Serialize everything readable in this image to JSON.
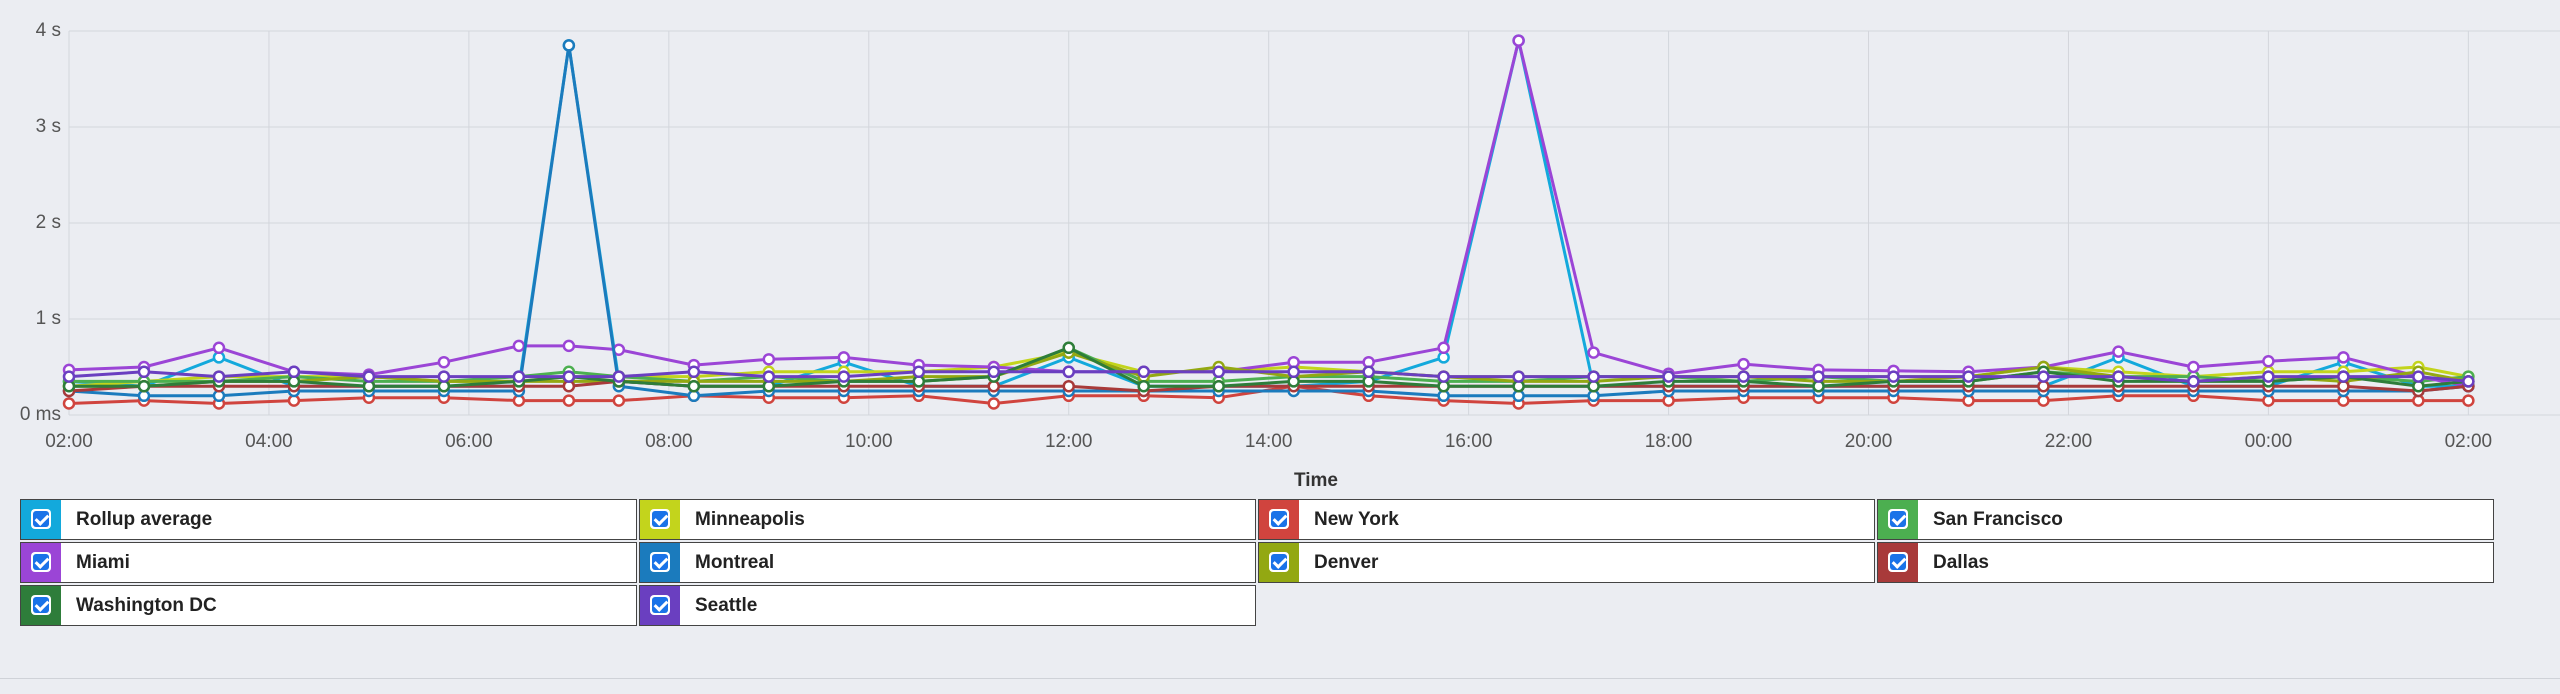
{
  "chart_data": {
    "type": "line",
    "x_label": "Time",
    "x": [
      "02:00",
      "02:45",
      "03:30",
      "04:15",
      "05:00",
      "05:45",
      "06:30",
      "07:00",
      "07:30",
      "08:15",
      "09:00",
      "09:45",
      "10:30",
      "11:15",
      "12:00",
      "12:45",
      "13:30",
      "14:15",
      "15:00",
      "15:45",
      "16:30",
      "17:15",
      "18:00",
      "18:45",
      "19:30",
      "20:15",
      "21:00",
      "21:45",
      "22:30",
      "23:15",
      "00:00",
      "00:45",
      "01:30",
      "02:00"
    ],
    "xlim": [
      "02:00",
      "02:55"
    ],
    "xticks": [
      "02:00",
      "04:00",
      "06:00",
      "08:00",
      "10:00",
      "12:00",
      "14:00",
      "16:00",
      "18:00",
      "20:00",
      "22:00",
      "00:00",
      "02:00"
    ],
    "ylim": [
      0,
      4
    ],
    "yticks": [
      {
        "value": 0,
        "label": "0 ms"
      },
      {
        "value": 1,
        "label": "1 s"
      },
      {
        "value": 2,
        "label": "2 s"
      },
      {
        "value": 3,
        "label": "3 s"
      },
      {
        "value": 4,
        "label": "4 s"
      }
    ],
    "grid": true,
    "series": [
      {
        "name": "Rollup average",
        "color": "#13a9dc",
        "values": [
          0.35,
          0.3,
          0.6,
          0.3,
          0.3,
          0.3,
          0.3,
          3.85,
          0.35,
          0.3,
          0.3,
          0.55,
          0.3,
          0.3,
          0.6,
          0.3,
          0.3,
          0.3,
          0.35,
          0.6,
          3.9,
          0.3,
          0.3,
          0.3,
          0.3,
          0.3,
          0.3,
          0.3,
          0.6,
          0.3,
          0.3,
          0.55,
          0.3,
          0.3
        ]
      },
      {
        "name": "Minneapolis",
        "color": "#c3d41c",
        "values": [
          0.3,
          0.35,
          0.4,
          0.4,
          0.4,
          0.35,
          0.35,
          0.4,
          0.4,
          0.4,
          0.45,
          0.45,
          0.45,
          0.5,
          0.65,
          0.45,
          0.45,
          0.5,
          0.45,
          0.4,
          0.4,
          0.4,
          0.4,
          0.4,
          0.4,
          0.4,
          0.4,
          0.5,
          0.45,
          0.4,
          0.45,
          0.45,
          0.5,
          0.4
        ]
      },
      {
        "name": "New York",
        "color": "#d0443e",
        "values": [
          0.12,
          0.15,
          0.12,
          0.15,
          0.18,
          0.18,
          0.15,
          0.15,
          0.15,
          0.2,
          0.18,
          0.18,
          0.2,
          0.12,
          0.2,
          0.2,
          0.18,
          0.3,
          0.2,
          0.15,
          0.12,
          0.15,
          0.15,
          0.18,
          0.18,
          0.18,
          0.15,
          0.15,
          0.2,
          0.2,
          0.15,
          0.15,
          0.15,
          0.15
        ]
      },
      {
        "name": "San Francisco",
        "color": "#4caf50",
        "values": [
          0.35,
          0.35,
          0.35,
          0.4,
          0.35,
          0.35,
          0.4,
          0.45,
          0.4,
          0.35,
          0.4,
          0.35,
          0.35,
          0.4,
          0.7,
          0.35,
          0.35,
          0.4,
          0.4,
          0.35,
          0.35,
          0.4,
          0.4,
          0.35,
          0.4,
          0.35,
          0.35,
          0.45,
          0.4,
          0.4,
          0.35,
          0.4,
          0.35,
          0.4
        ]
      },
      {
        "name": "Miami",
        "color": "#9b45d6",
        "values": [
          0.47,
          0.5,
          0.7,
          0.45,
          0.42,
          0.55,
          0.72,
          0.72,
          0.68,
          0.52,
          0.58,
          0.6,
          0.52,
          0.5,
          0.45,
          0.45,
          0.45,
          0.55,
          0.55,
          0.7,
          3.9,
          0.65,
          0.43,
          0.53,
          0.47,
          0.46,
          0.45,
          0.5,
          0.66,
          0.5,
          0.56,
          0.6,
          0.4,
          0.3
        ]
      },
      {
        "name": "Montreal",
        "color": "#1b7bbd",
        "values": [
          0.25,
          0.2,
          0.2,
          0.25,
          0.25,
          0.25,
          0.25,
          3.85,
          0.3,
          0.2,
          0.25,
          0.25,
          0.25,
          0.25,
          0.25,
          0.25,
          0.25,
          0.25,
          0.25,
          0.2,
          0.2,
          0.2,
          0.25,
          0.25,
          0.25,
          0.25,
          0.25,
          0.25,
          0.25,
          0.25,
          0.25,
          0.25,
          0.25,
          0.3
        ]
      },
      {
        "name": "Denver",
        "color": "#93a812",
        "values": [
          0.3,
          0.3,
          0.35,
          0.35,
          0.4,
          0.35,
          0.35,
          0.35,
          0.35,
          0.35,
          0.35,
          0.35,
          0.4,
          0.4,
          0.65,
          0.4,
          0.5,
          0.4,
          0.45,
          0.4,
          0.35,
          0.35,
          0.4,
          0.4,
          0.35,
          0.35,
          0.4,
          0.5,
          0.4,
          0.35,
          0.4,
          0.35,
          0.45,
          0.35
        ]
      },
      {
        "name": "Dallas",
        "color": "#a83a3a",
        "values": [
          0.25,
          0.3,
          0.3,
          0.3,
          0.3,
          0.3,
          0.3,
          0.3,
          0.35,
          0.3,
          0.3,
          0.3,
          0.3,
          0.3,
          0.3,
          0.25,
          0.3,
          0.3,
          0.3,
          0.3,
          0.3,
          0.3,
          0.3,
          0.3,
          0.3,
          0.3,
          0.3,
          0.3,
          0.3,
          0.3,
          0.3,
          0.3,
          0.25,
          0.3
        ]
      },
      {
        "name": "Washington DC",
        "color": "#2e7d3a",
        "values": [
          0.3,
          0.3,
          0.35,
          0.35,
          0.3,
          0.3,
          0.35,
          0.4,
          0.35,
          0.3,
          0.3,
          0.35,
          0.35,
          0.4,
          0.7,
          0.3,
          0.3,
          0.35,
          0.35,
          0.3,
          0.3,
          0.3,
          0.35,
          0.35,
          0.3,
          0.35,
          0.35,
          0.45,
          0.35,
          0.35,
          0.35,
          0.4,
          0.3,
          0.35
        ]
      },
      {
        "name": "Seattle",
        "color": "#6a3fc0",
        "values": [
          0.4,
          0.45,
          0.4,
          0.45,
          0.4,
          0.4,
          0.4,
          0.4,
          0.4,
          0.45,
          0.4,
          0.4,
          0.45,
          0.45,
          0.45,
          0.45,
          0.45,
          0.45,
          0.45,
          0.4,
          0.4,
          0.4,
          0.4,
          0.4,
          0.4,
          0.4,
          0.4,
          0.4,
          0.4,
          0.35,
          0.4,
          0.4,
          0.4,
          0.35
        ]
      }
    ]
  }
}
